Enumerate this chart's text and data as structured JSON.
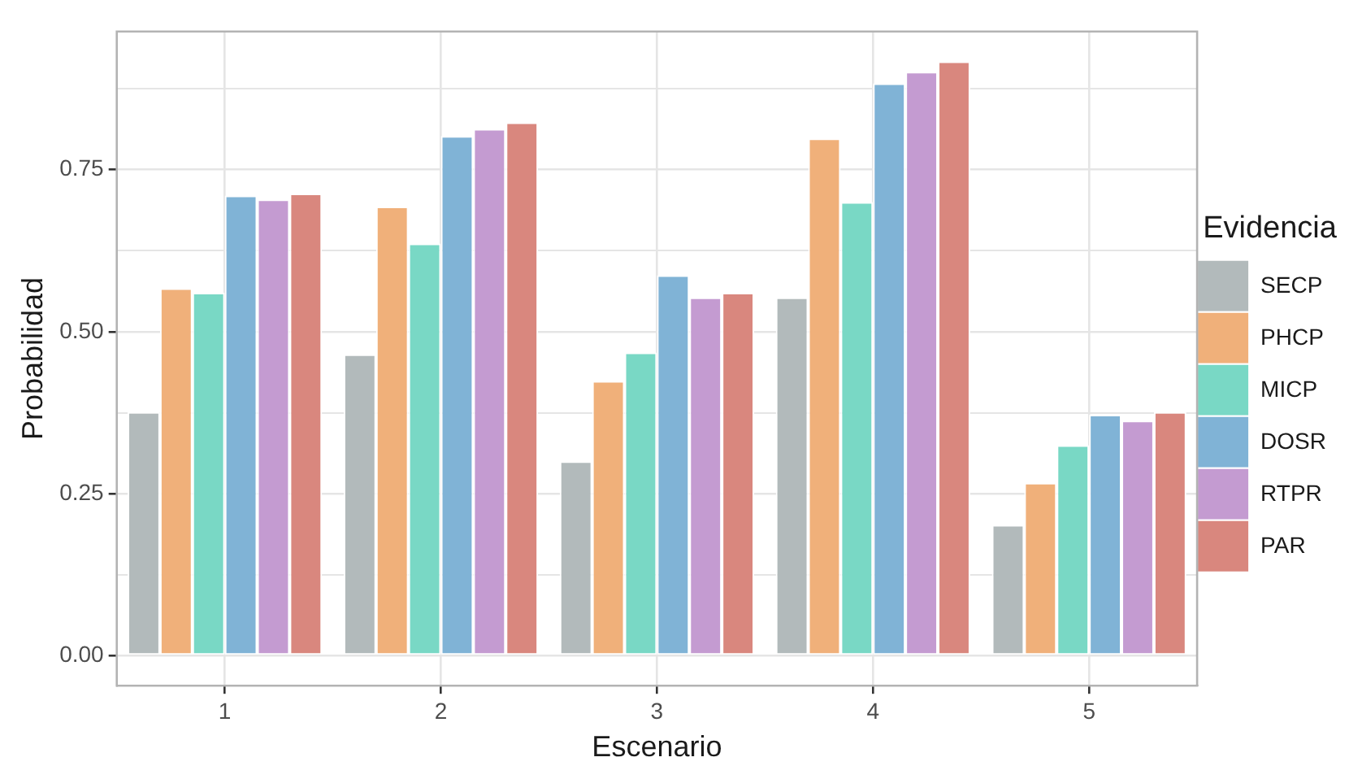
{
  "chart_data": {
    "type": "bar",
    "xlabel": "Escenario",
    "ylabel": "Probabilidad",
    "legend_title": "Evidencia",
    "categories": [
      "1",
      "2",
      "3",
      "4",
      "5"
    ],
    "series": [
      {
        "name": "SECP",
        "color": "#b2babb",
        "values": [
          0.376,
          0.465,
          0.3,
          0.553,
          0.202
        ]
      },
      {
        "name": "PHCP",
        "color": "#f0b07a",
        "values": [
          0.567,
          0.693,
          0.424,
          0.798,
          0.267
        ]
      },
      {
        "name": "MICP",
        "color": "#79d8c5",
        "values": [
          0.56,
          0.636,
          0.468,
          0.7,
          0.325
        ]
      },
      {
        "name": "DOSR",
        "color": "#80b3d6",
        "values": [
          0.71,
          0.802,
          0.587,
          0.883,
          0.372
        ]
      },
      {
        "name": "RTPR",
        "color": "#c49bd1",
        "values": [
          0.704,
          0.813,
          0.553,
          0.901,
          0.363
        ]
      },
      {
        "name": "PAR",
        "color": "#d9877e",
        "values": [
          0.713,
          0.823,
          0.56,
          0.917,
          0.376
        ]
      }
    ],
    "ylim": [
      -0.046,
      0.963
    ],
    "yticks": [
      {
        "value": 0,
        "label": "0.00"
      },
      {
        "value": 0.125,
        "label": null
      },
      {
        "value": 0.25,
        "label": "0.25"
      },
      {
        "value": 0.375,
        "label": null
      },
      {
        "value": 0.5,
        "label": "0.50"
      },
      {
        "value": 0.625,
        "label": null
      },
      {
        "value": 0.75,
        "label": "0.75"
      },
      {
        "value": 0.875,
        "label": null
      }
    ],
    "grid": true,
    "legend": "right"
  }
}
